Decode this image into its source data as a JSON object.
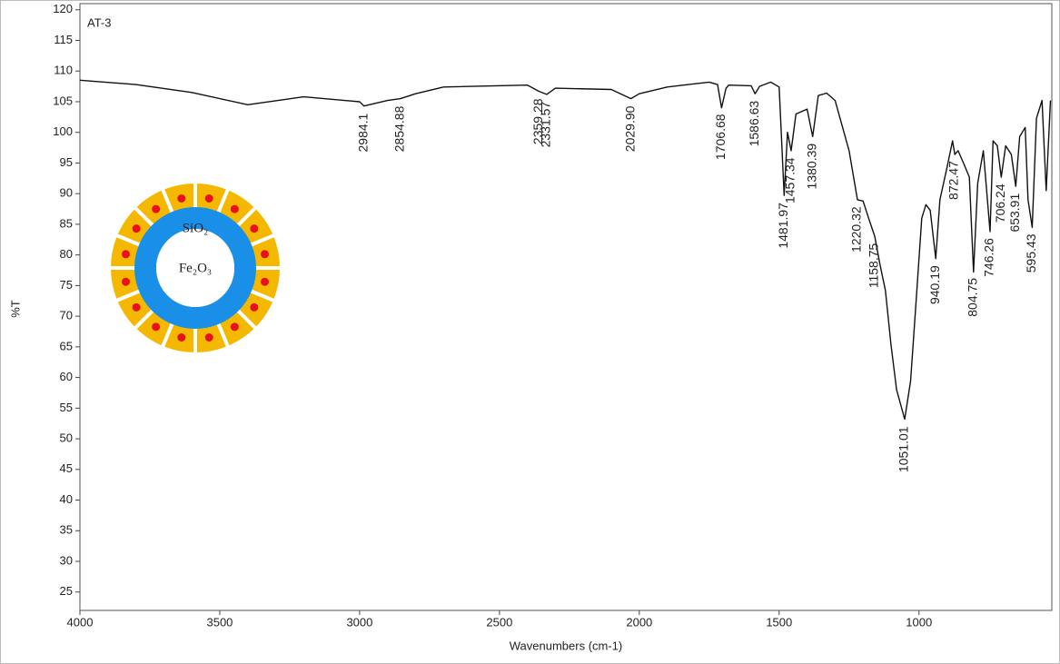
{
  "chart_data": {
    "type": "line",
    "title": "AT-3",
    "x_label": "Wavenumbers (cm-1)",
    "y_label": "%T",
    "xlim": [
      4000,
      525
    ],
    "ylim": [
      22,
      121
    ],
    "x_reversed": true,
    "xticks": [
      4000,
      3500,
      3000,
      2500,
      2000,
      1500,
      1000
    ],
    "yticks": [
      25,
      30,
      35,
      40,
      45,
      50,
      55,
      60,
      65,
      70,
      75,
      80,
      85,
      90,
      95,
      100,
      105,
      110,
      115,
      120
    ],
    "x": [
      4000,
      3800,
      3600,
      3400,
      3200,
      3000,
      2984,
      2900,
      2854,
      2800,
      2700,
      2400,
      2359,
      2331,
      2300,
      2100,
      2030,
      2000,
      1900,
      1750,
      1720,
      1706,
      1690,
      1680,
      1600,
      1586,
      1570,
      1530,
      1500,
      1482,
      1470,
      1457,
      1440,
      1400,
      1380,
      1360,
      1330,
      1300,
      1250,
      1220,
      1200,
      1180,
      1158,
      1140,
      1120,
      1100,
      1080,
      1051,
      1030,
      1010,
      990,
      975,
      960,
      940,
      925,
      900,
      880,
      872,
      860,
      840,
      820,
      805,
      790,
      770,
      746,
      735,
      720,
      706,
      690,
      670,
      654,
      640,
      620,
      610,
      595,
      580,
      560,
      545,
      530
    ],
    "series": [
      {
        "name": "AT-3",
        "color": "#111111",
        "values": [
          108.5,
          107.8,
          106.5,
          104.5,
          105.8,
          105.0,
          104.3,
          105.2,
          105.5,
          106.3,
          107.4,
          107.7,
          106.7,
          106.2,
          107.2,
          107.0,
          105.5,
          106.3,
          107.4,
          108.2,
          107.8,
          104.0,
          107.2,
          107.7,
          107.6,
          106.3,
          107.5,
          108.2,
          107.4,
          89.7,
          100.0,
          97.0,
          103.0,
          103.8,
          99.3,
          106.0,
          106.4,
          105.2,
          97.0,
          89.0,
          88.8,
          86.0,
          83.0,
          78.6,
          74.2,
          65.4,
          58.0,
          53.2,
          59.4,
          72.7,
          86.0,
          88.2,
          87.3,
          79.4,
          89.0,
          94.2,
          98.6,
          96.4,
          97.0,
          94.9,
          92.7,
          77.2,
          91.7,
          97.0,
          83.8,
          98.6,
          97.8,
          92.7,
          97.8,
          96.4,
          91.2,
          99.3,
          100.8,
          89.0,
          84.5,
          102.3,
          105.2,
          90.5,
          105.2
        ]
      }
    ],
    "peaks": [
      2984.1,
      2854.88,
      2359.28,
      2331.57,
      {
        "value": 2029.9,
        "label": "2029.90"
      },
      1706.68,
      1586.63,
      1481.97,
      1457.34,
      1380.39,
      1220.32,
      1158.75,
      1051.01,
      940.19,
      872.47,
      804.75,
      746.26,
      706.24,
      653.91,
      595.43
    ],
    "inset": {
      "shell_label": "SiO₂",
      "core_label": "Fe₂O₃"
    }
  }
}
